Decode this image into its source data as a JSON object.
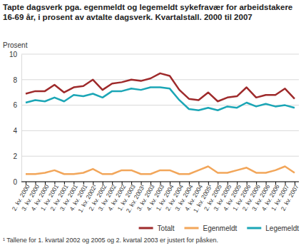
{
  "chart_data": {
    "type": "line",
    "title": "Tapte dagsverk pga. egenmeldt og legemeldt sykefravær for arbeidstakere 16-69 år, i prosent av avtalte dagsverk. Kvartalstall. 2000 til 2007",
    "y_label": "Prosent",
    "footnote": "¹ Tallene for 1. kvartal 2002 og 2005 og 2. kvartal 2003 er justert for påsken.",
    "categories": [
      "2. kv. 2000",
      "3. kv. 2000",
      "4. kv. 2000",
      "1. kv. 2001",
      "2. kv. 2001",
      "3. kv. 2001",
      "4. kv. 2001",
      "1. kv. 2002¹",
      "2. kv. 2002",
      "3. kv. 2002",
      "4. kv. 2002",
      "1. kv. 2003",
      "2. kv. 2003¹",
      "3. kv. 2003",
      "4. kv. 2003",
      "1. kv. 2004",
      "2. kv. 2004",
      "3. kv. 2004",
      "4. kv. 2004",
      "1. kv. 2005¹",
      "2. kv. 2005",
      "3. kv. 2005",
      "4. kv. 2005",
      "1. kv. 2006",
      "2. kv. 2006",
      "3. kv. 2006",
      "4. kv. 2006",
      "1. kv. 2007",
      "2. kv. 2007"
    ],
    "series": [
      {
        "name": "Totalt",
        "color": "#9e2a2b",
        "values": [
          6.9,
          7.1,
          7.1,
          7.6,
          7.0,
          7.4,
          7.5,
          8.0,
          7.2,
          7.7,
          7.8,
          8.0,
          7.9,
          8.1,
          8.5,
          8.3,
          7.2,
          6.5,
          6.4,
          7.0,
          6.3,
          6.6,
          6.7,
          7.4,
          6.6,
          6.8,
          6.8,
          7.3,
          6.5
        ]
      },
      {
        "name": "Egenmeldt",
        "color": "#f2a65a",
        "values": [
          0.6,
          0.6,
          0.7,
          0.9,
          0.6,
          0.6,
          0.7,
          1.0,
          0.6,
          0.6,
          0.9,
          0.9,
          0.6,
          0.6,
          0.9,
          0.9,
          0.6,
          0.6,
          0.9,
          1.2,
          0.7,
          0.7,
          0.9,
          1.1,
          0.7,
          0.7,
          0.9,
          1.2,
          0.7
        ]
      },
      {
        "name": "Legemeldt",
        "color": "#1ba6b6",
        "values": [
          6.2,
          6.4,
          6.3,
          6.6,
          6.3,
          6.8,
          6.7,
          6.9,
          6.6,
          7.1,
          7.1,
          7.3,
          7.2,
          7.4,
          7.4,
          7.3,
          6.4,
          5.7,
          5.6,
          5.8,
          5.6,
          5.9,
          5.8,
          6.2,
          5.9,
          6.1,
          5.9,
          6.0,
          5.8
        ]
      }
    ],
    "ylim": [
      0,
      10
    ],
    "yticks": [
      0,
      2,
      4,
      6,
      8,
      10
    ],
    "grid": true,
    "legend": "bottom right"
  }
}
